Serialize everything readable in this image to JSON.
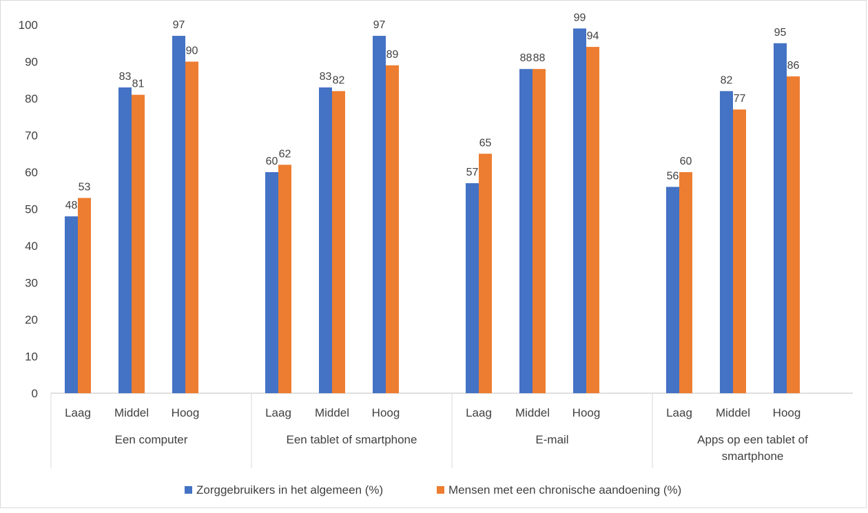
{
  "chart_data": {
    "type": "bar",
    "ylim": [
      0,
      100
    ],
    "yticks": [
      0,
      10,
      20,
      30,
      40,
      50,
      60,
      70,
      80,
      90,
      100
    ],
    "grid": false,
    "legend_position": "bottom",
    "groups": [
      {
        "label": "Een computer",
        "label_lines": [
          "Een computer"
        ],
        "categories": [
          "Laag",
          "Middel",
          "Hoog"
        ]
      },
      {
        "label": "Een tablet of smartphone",
        "label_lines": [
          "Een tablet of smartphone"
        ],
        "categories": [
          "Laag",
          "Middel",
          "Hoog"
        ]
      },
      {
        "label": "E-mail",
        "label_lines": [
          "E-mail"
        ],
        "categories": [
          "Laag",
          "Middel",
          "Hoog"
        ]
      },
      {
        "label": "Apps op een tablet of smartphone",
        "label_lines": [
          "Apps op een tablet of",
          "smartphone"
        ],
        "categories": [
          "Laag",
          "Middel",
          "Hoog"
        ]
      }
    ],
    "series": [
      {
        "name": "Zorggebruikers in het algemeen (%)",
        "color": "#4472C4",
        "values": [
          48,
          83,
          97,
          60,
          83,
          97,
          57,
          88,
          99,
          56,
          82,
          95
        ],
        "labels": [
          "48",
          "83",
          "97",
          "60",
          "83",
          "97",
          "57",
          "88",
          "99",
          "56",
          "82",
          "95"
        ]
      },
      {
        "name": "Mensen met een chronische aandoening (%)",
        "color": "#ED7D31",
        "values": [
          53,
          81,
          90,
          62,
          82,
          89,
          65,
          88,
          94,
          60,
          77,
          86
        ],
        "labels": [
          "53",
          "81",
          "90",
          "62",
          "82",
          "89",
          "65",
          "88",
          "94",
          "60",
          "77",
          "86"
        ]
      }
    ]
  }
}
